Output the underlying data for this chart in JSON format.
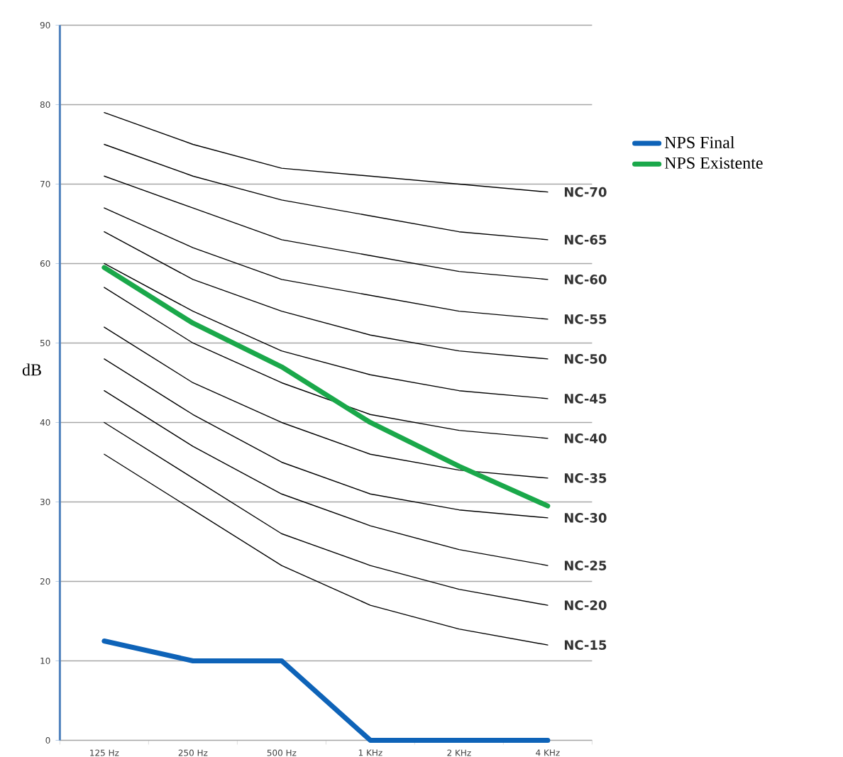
{
  "chart_data": {
    "type": "line",
    "ylabel": "dB",
    "categories": [
      "125 Hz",
      "250 Hz",
      "500 Hz",
      "1 KHz",
      "2 KHz",
      "4 KHz"
    ],
    "ylim": [
      0,
      90
    ],
    "yticks": [
      0,
      10,
      20,
      30,
      40,
      50,
      60,
      70,
      80,
      90
    ],
    "grid": "y",
    "legend": "top right",
    "marker": "none",
    "series": [
      {
        "name": "NC-70",
        "color": "#000000",
        "values": [
          79,
          75,
          72,
          71,
          70,
          69
        ]
      },
      {
        "name": "NC-65",
        "color": "#000000",
        "values": [
          75,
          71,
          68,
          66,
          64,
          63
        ]
      },
      {
        "name": "NC-60",
        "color": "#000000",
        "values": [
          71,
          67,
          63,
          61,
          59,
          58
        ]
      },
      {
        "name": "NC-55",
        "color": "#000000",
        "values": [
          67,
          62,
          58,
          56,
          54,
          53
        ]
      },
      {
        "name": "NC-50",
        "color": "#000000",
        "values": [
          64,
          58,
          54,
          51,
          49,
          48
        ]
      },
      {
        "name": "NC-45",
        "color": "#000000",
        "values": [
          60,
          54,
          49,
          46,
          44,
          43
        ]
      },
      {
        "name": "NC-40",
        "color": "#000000",
        "values": [
          57,
          50,
          45,
          41,
          39,
          38
        ]
      },
      {
        "name": "NC-35",
        "color": "#000000",
        "values": [
          52,
          45,
          40,
          36,
          34,
          33
        ]
      },
      {
        "name": "NC-30",
        "color": "#000000",
        "values": [
          48,
          41,
          35,
          31,
          29,
          28
        ]
      },
      {
        "name": "NC-25",
        "color": "#000000",
        "values": [
          44,
          37,
          31,
          27,
          24,
          22
        ]
      },
      {
        "name": "NC-20",
        "color": "#000000",
        "values": [
          40,
          33,
          26,
          22,
          19,
          17
        ]
      },
      {
        "name": "NC-15",
        "color": "#000000",
        "values": [
          36,
          29,
          22,
          17,
          14,
          12
        ]
      },
      {
        "name": "NPS Final",
        "color": "#0e63b8",
        "values": [
          12.5,
          10,
          10,
          0,
          0,
          0
        ]
      },
      {
        "name": "NPS Existente",
        "color": "#1aa84a",
        "values": [
          59.5,
          52.5,
          47,
          40,
          34.5,
          29.5
        ]
      }
    ]
  }
}
